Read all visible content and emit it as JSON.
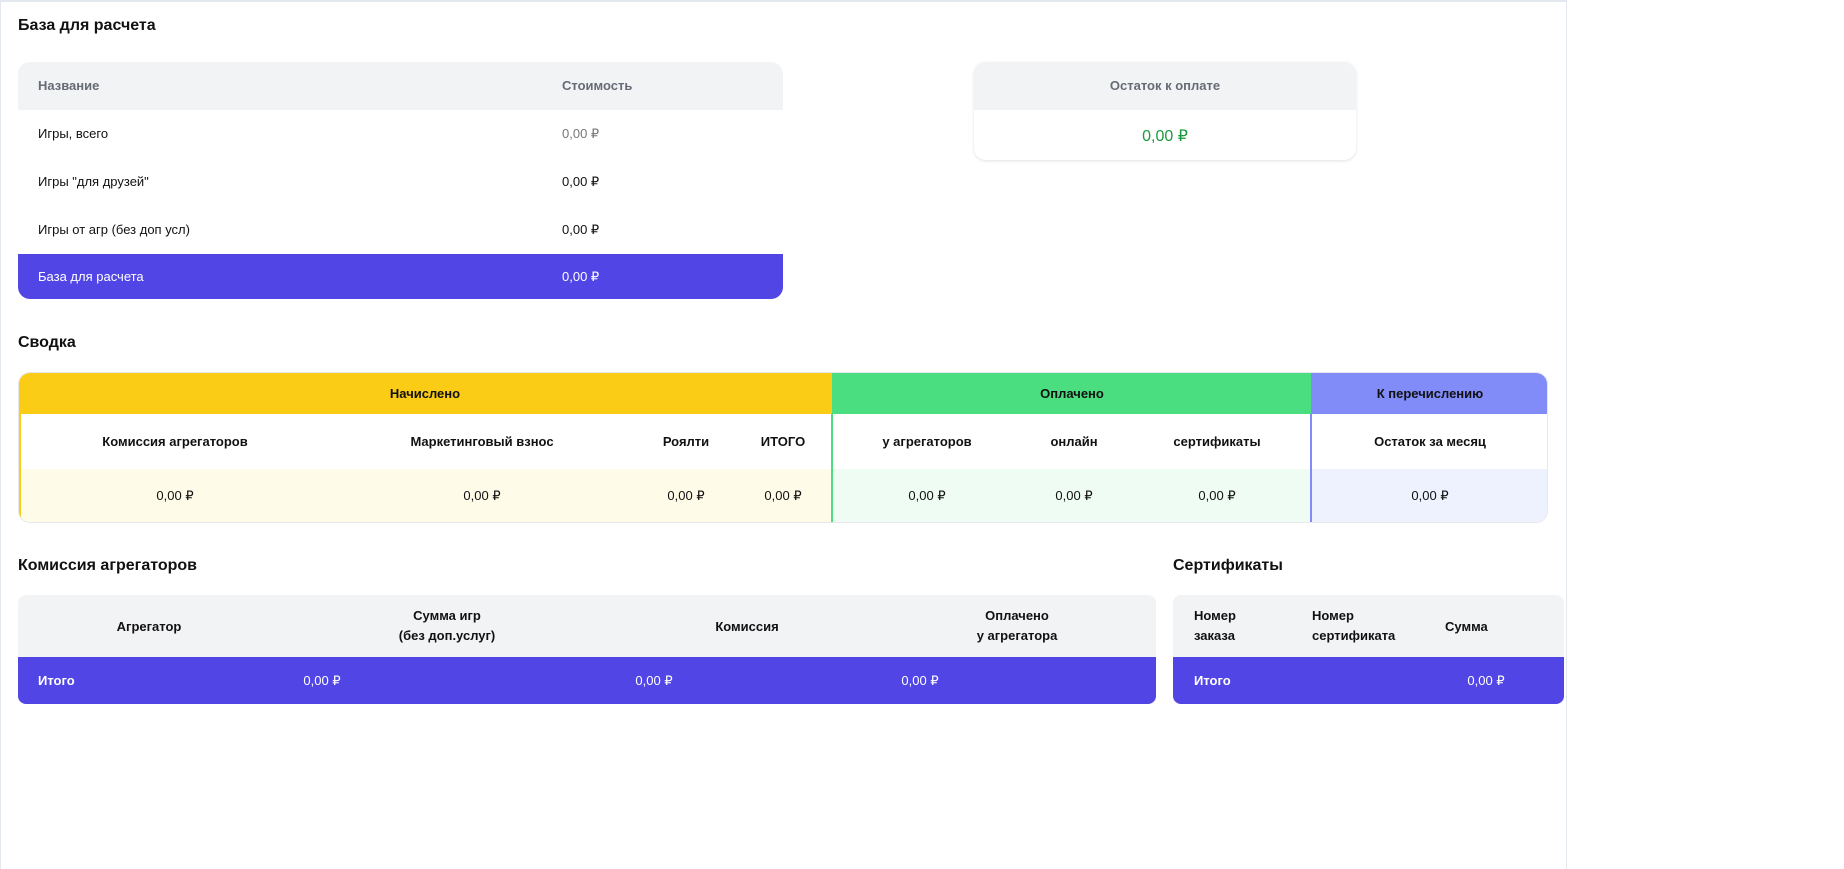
{
  "base": {
    "title": "База для расчета",
    "col_name": "Название",
    "col_cost": "Стоимость",
    "rows": [
      {
        "name": "Игры, всего",
        "value": "0,00 ₽"
      },
      {
        "name": "Игры \"для друзей\"",
        "value": "0,00 ₽"
      },
      {
        "name": "Игры от агр (без доп усл)",
        "value": "0,00 ₽"
      }
    ],
    "total": {
      "name": "База для расчета",
      "value": "0,00 ₽"
    }
  },
  "remaining": {
    "label": "Остаток к оплате",
    "value": "0,00 ₽",
    "color": "#1a9a3c"
  },
  "summary": {
    "title": "Сводка",
    "groups": {
      "accrued": "Начислено",
      "paid": "Оплачено",
      "transfer": "К перечислению"
    },
    "columns": [
      "Комиссия агрегаторов",
      "Маркетинговый взнос",
      "Роялти",
      "ИТОГО",
      "у агрегаторов",
      "онлайн",
      "сертификаты",
      "Остаток за месяц"
    ],
    "values": [
      "0,00 ₽",
      "0,00 ₽",
      "0,00 ₽",
      "0,00 ₽",
      "0,00 ₽",
      "0,00 ₽",
      "0,00 ₽",
      "0,00 ₽"
    ],
    "colors": {
      "accrued": "#facc15",
      "paid": "#4ade80",
      "transfer": "#818cf8"
    }
  },
  "aggregators": {
    "title": "Комиссия агрегаторов",
    "col_agg": "Агрегатор",
    "col_sum_1": "Сумма игр",
    "col_sum_2": "(без доп.услуг)",
    "col_comm": "Комиссия",
    "col_paid_1": "Оплачено",
    "col_paid_2": "у агрегатора",
    "total": {
      "label": "Итого",
      "sum": "0,00 ₽",
      "commission": "0,00 ₽",
      "paid": "0,00 ₽"
    }
  },
  "certificates": {
    "title": "Сертификаты",
    "col_order_1": "Номер",
    "col_order_2": "заказа",
    "col_cert_1": "Номер",
    "col_cert_2": "сертификата",
    "col_sum": "Сумма",
    "total": {
      "label": "Итого",
      "sum": "0,00 ₽"
    }
  }
}
